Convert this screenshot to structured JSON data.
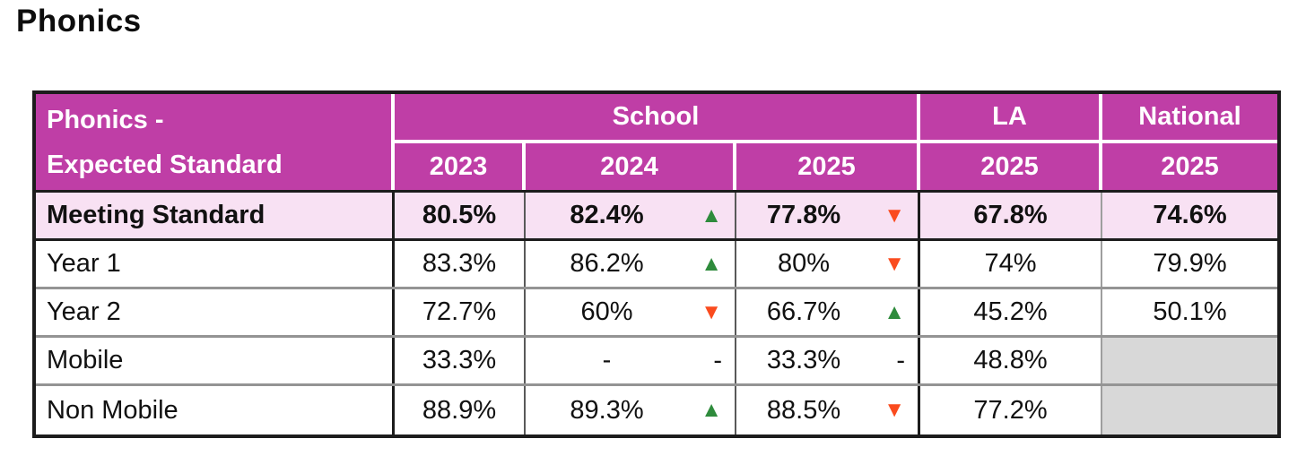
{
  "page": {
    "title": "Phonics"
  },
  "colors": {
    "header_bg": "#BF3EA6",
    "highlight_row_bg": "#F8E1F3",
    "empty_cell_bg": "#D8D8D8",
    "trend_up": "#2E8B3C",
    "trend_down": "#FA4B1E",
    "border_dark": "#1C1C1C"
  },
  "table": {
    "corner": {
      "line1": "Phonics -",
      "line2": "Expected Standard"
    },
    "groups": {
      "school": "School",
      "la": "LA",
      "national": "National"
    },
    "years": {
      "school_2023": "2023",
      "school_2024": "2024",
      "school_2025": "2025",
      "la_2025": "2025",
      "national_2025": "2025"
    },
    "rows": [
      {
        "label": "Meeting Standard",
        "cells": [
          {
            "value": "80.5%"
          },
          {
            "value": "82.4%",
            "trend_glyph": "▲",
            "trend_dir": "up"
          },
          {
            "value": "77.8%",
            "trend_glyph": "▼",
            "trend_dir": "down"
          },
          {
            "value": "67.8%"
          },
          {
            "value": "74.6%"
          }
        ]
      },
      {
        "label": "Year 1",
        "cells": [
          {
            "value": "83.3%"
          },
          {
            "value": "86.2%",
            "trend_glyph": "▲",
            "trend_dir": "up"
          },
          {
            "value": "80%",
            "trend_glyph": "▼",
            "trend_dir": "down"
          },
          {
            "value": "74%"
          },
          {
            "value": "79.9%"
          }
        ]
      },
      {
        "label": "Year 2",
        "cells": [
          {
            "value": "72.7%"
          },
          {
            "value": "60%",
            "trend_glyph": "▼",
            "trend_dir": "down"
          },
          {
            "value": "66.7%",
            "trend_glyph": "▲",
            "trend_dir": "up"
          },
          {
            "value": "45.2%"
          },
          {
            "value": "50.1%"
          }
        ]
      },
      {
        "label": "Mobile",
        "cells": [
          {
            "value": "33.3%"
          },
          {
            "value": "-",
            "trend_glyph": "-",
            "trend_dir": "dash"
          },
          {
            "value": "33.3%",
            "trend_glyph": "-",
            "trend_dir": "dash"
          },
          {
            "value": "48.8%"
          },
          {
            "value": "",
            "empty": true
          }
        ]
      },
      {
        "label": "Non Mobile",
        "cells": [
          {
            "value": "88.9%"
          },
          {
            "value": "89.3%",
            "trend_glyph": "▲",
            "trend_dir": "up"
          },
          {
            "value": "88.5%",
            "trend_glyph": "▼",
            "trend_dir": "down"
          },
          {
            "value": "77.2%"
          },
          {
            "value": "",
            "empty": true
          }
        ]
      }
    ]
  },
  "chart_data": {
    "type": "table",
    "title": "Phonics - Expected Standard",
    "columns": [
      "Phonics - Expected Standard",
      "School 2023",
      "School 2024",
      "School 2025",
      "LA 2025",
      "National 2025"
    ],
    "rows": [
      [
        "Meeting Standard",
        "80.5%",
        "82.4% ▲",
        "77.8% ▼",
        "67.8%",
        "74.6%"
      ],
      [
        "Year 1",
        "83.3%",
        "86.2% ▲",
        "80% ▼",
        "74%",
        "79.9%"
      ],
      [
        "Year 2",
        "72.7%",
        "60% ▼",
        "66.7% ▲",
        "45.2%",
        "50.1%"
      ],
      [
        "Mobile",
        "33.3%",
        "-",
        "33.3% -",
        "48.8%",
        ""
      ],
      [
        "Non Mobile",
        "88.9%",
        "89.3% ▲",
        "88.5% ▼",
        "77.2%",
        ""
      ]
    ]
  }
}
